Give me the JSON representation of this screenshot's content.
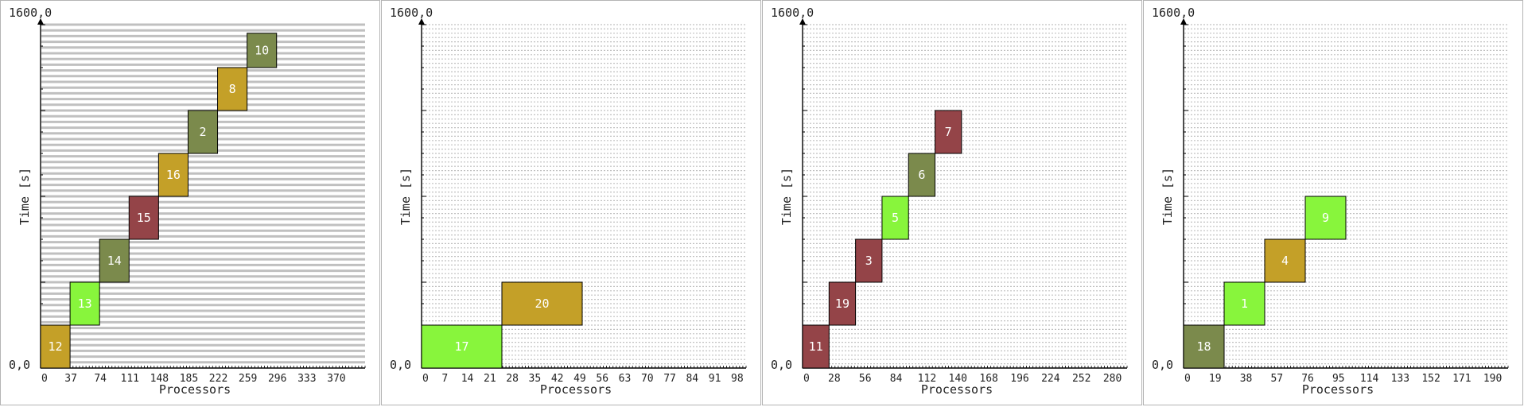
{
  "chart_data": [
    {
      "type": "gantt",
      "ymax_label": "1600,0",
      "origin_label": "0,0",
      "xlabel": "Processors",
      "ylabel": "Time [s]",
      "xlim": [
        0,
        407
      ],
      "ylim": [
        0,
        1600
      ],
      "x_ticks": [
        0,
        37,
        74,
        111,
        148,
        185,
        222,
        259,
        296,
        333,
        370
      ],
      "grid_style": "solid",
      "grid_rows": 60,
      "jobs": [
        {
          "id": "12",
          "x0": 0,
          "x1": 37,
          "y0": 0,
          "y1": 200,
          "color": "#c4a028"
        },
        {
          "id": "13",
          "x0": 37,
          "x1": 74,
          "y0": 200,
          "y1": 400,
          "color": "#88f53c"
        },
        {
          "id": "14",
          "x0": 74,
          "x1": 111,
          "y0": 400,
          "y1": 600,
          "color": "#7b8a4c"
        },
        {
          "id": "15",
          "x0": 111,
          "x1": 148,
          "y0": 600,
          "y1": 800,
          "color": "#944448"
        },
        {
          "id": "16",
          "x0": 148,
          "x1": 185,
          "y0": 800,
          "y1": 1000,
          "color": "#c4a028"
        },
        {
          "id": "2",
          "x0": 185,
          "x1": 222,
          "y0": 1000,
          "y1": 1200,
          "color": "#7b8a4c"
        },
        {
          "id": "8",
          "x0": 222,
          "x1": 259,
          "y0": 1200,
          "y1": 1400,
          "color": "#c4a028"
        },
        {
          "id": "10",
          "x0": 259,
          "x1": 296,
          "y0": 1400,
          "y1": 1560,
          "color": "#7b8a4c"
        }
      ]
    },
    {
      "type": "gantt",
      "ymax_label": "1600,0",
      "origin_label": "0,0",
      "xlabel": "Processors",
      "ylabel": "Time [s]",
      "xlim": [
        0,
        101
      ],
      "ylim": [
        0,
        1600
      ],
      "x_ticks": [
        0,
        7,
        14,
        21,
        28,
        35,
        42,
        49,
        56,
        63,
        70,
        77,
        84,
        91,
        98
      ],
      "grid_style": "dashed",
      "grid_rows": 80,
      "jobs": [
        {
          "id": "17",
          "x0": 0,
          "x1": 25,
          "y0": 0,
          "y1": 200,
          "color": "#88f53c"
        },
        {
          "id": "20",
          "x0": 25,
          "x1": 50,
          "y0": 200,
          "y1": 400,
          "color": "#c4a028"
        }
      ]
    },
    {
      "type": "gantt",
      "ymax_label": "1600,0",
      "origin_label": "0,0",
      "xlabel": "Processors",
      "ylabel": "Time [s]",
      "xlim": [
        0,
        294
      ],
      "ylim": [
        0,
        1600
      ],
      "x_ticks": [
        0,
        28,
        56,
        84,
        112,
        140,
        168,
        196,
        224,
        252,
        280
      ],
      "grid_style": "dashed",
      "grid_rows": 80,
      "jobs": [
        {
          "id": "11",
          "x0": 0,
          "x1": 24,
          "y0": 0,
          "y1": 200,
          "color": "#944448"
        },
        {
          "id": "19",
          "x0": 24,
          "x1": 48,
          "y0": 200,
          "y1": 400,
          "color": "#944448"
        },
        {
          "id": "3",
          "x0": 48,
          "x1": 72,
          "y0": 400,
          "y1": 600,
          "color": "#944448"
        },
        {
          "id": "5",
          "x0": 72,
          "x1": 96,
          "y0": 600,
          "y1": 800,
          "color": "#88f53c"
        },
        {
          "id": "6",
          "x0": 96,
          "x1": 120,
          "y0": 800,
          "y1": 1000,
          "color": "#7b8a4c"
        },
        {
          "id": "7",
          "x0": 120,
          "x1": 144,
          "y0": 1000,
          "y1": 1200,
          "color": "#944448"
        }
      ]
    },
    {
      "type": "gantt",
      "ymax_label": "1600,0",
      "origin_label": "0,0",
      "xlabel": "Processors",
      "ylabel": "Time [s]",
      "xlim": [
        0,
        200
      ],
      "ylim": [
        0,
        1600
      ],
      "x_ticks": [
        0,
        19,
        38,
        57,
        76,
        95,
        114,
        133,
        152,
        171,
        190
      ],
      "grid_style": "dashed",
      "grid_rows": 80,
      "jobs": [
        {
          "id": "18",
          "x0": 0,
          "x1": 25,
          "y0": 0,
          "y1": 200,
          "color": "#7b8a4c"
        },
        {
          "id": "1",
          "x0": 25,
          "x1": 50,
          "y0": 200,
          "y1": 400,
          "color": "#88f53c"
        },
        {
          "id": "4",
          "x0": 50,
          "x1": 75,
          "y0": 400,
          "y1": 600,
          "color": "#c4a028"
        },
        {
          "id": "9",
          "x0": 75,
          "x1": 100,
          "y0": 600,
          "y1": 800,
          "color": "#88f53c"
        }
      ]
    }
  ]
}
